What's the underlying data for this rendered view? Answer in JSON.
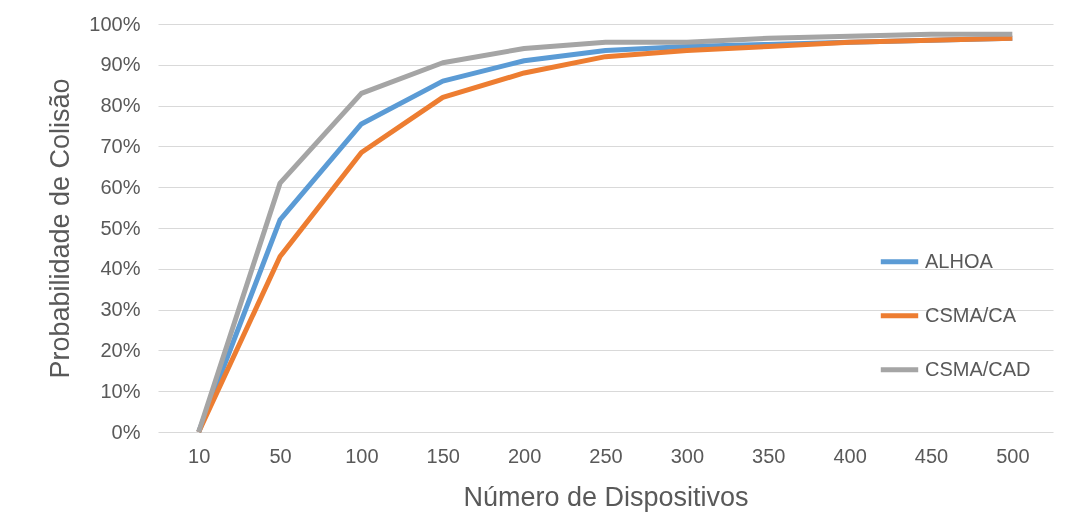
{
  "chart_data": {
    "type": "line",
    "xlabel": "Número de Dispositivos",
    "ylabel": "Probabilidade de Colisão",
    "categories": [
      "10",
      "50",
      "100",
      "150",
      "200",
      "250",
      "300",
      "350",
      "400",
      "450",
      "500"
    ],
    "series": [
      {
        "name": "ALHOA",
        "color": "#5b9bd5",
        "values": [
          0,
          52,
          75.5,
          86,
          91,
          93.5,
          94.5,
          95,
          95.5,
          96,
          96.5
        ]
      },
      {
        "name": "CSMA/CA",
        "color": "#ed7d31",
        "values": [
          0,
          43,
          68.5,
          82,
          88,
          92,
          93.5,
          94.5,
          95.5,
          96,
          96.5
        ]
      },
      {
        "name": "CSMA/CAD",
        "color": "#a5a5a5",
        "values": [
          0,
          61,
          83,
          90.5,
          94,
          95.5,
          95.5,
          96.5,
          97,
          97.5,
          97.5
        ]
      }
    ],
    "ylim": [
      0,
      100
    ],
    "yticks": [
      {
        "value": 0,
        "label": "0%"
      },
      {
        "value": 10,
        "label": "10%"
      },
      {
        "value": 20,
        "label": "20%"
      },
      {
        "value": 30,
        "label": "30%"
      },
      {
        "value": 40,
        "label": "40%"
      },
      {
        "value": 50,
        "label": "50%"
      },
      {
        "value": 60,
        "label": "60%"
      },
      {
        "value": 70,
        "label": "70%"
      },
      {
        "value": 80,
        "label": "80%"
      },
      {
        "value": 90,
        "label": "90%"
      },
      {
        "value": 100,
        "label": "100%"
      }
    ],
    "grid": "y",
    "legend": "right",
    "marker": "none",
    "line_style": "solid"
  }
}
